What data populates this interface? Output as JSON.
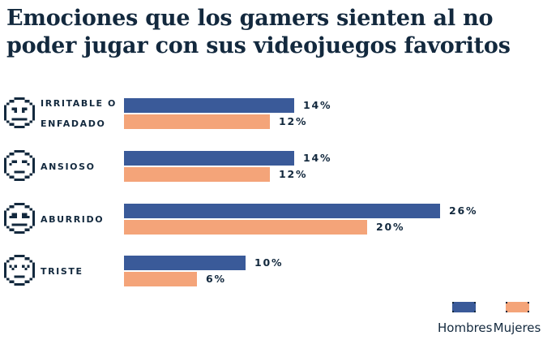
{
  "title": "Emociones que los gamers sienten al no poder jugar con sus videojuegos favoritos",
  "colors": {
    "text": "#13293E",
    "hombres": "#3A5A99",
    "mujeres": "#F4A479",
    "background": "#FFFFFF"
  },
  "chart_data": {
    "type": "bar",
    "orientation": "horizontal",
    "title": "Emociones que los gamers sienten al no poder jugar con sus videojuegos favoritos",
    "categories": [
      "Irritable o enfadado",
      "Ansioso",
      "Aburrido",
      "Triste"
    ],
    "category_display": [
      [
        "IRRITABLE O",
        "ENFADADO"
      ],
      [
        "ANSIOSO"
      ],
      [
        "ABURRIDO"
      ],
      [
        "TRISTE"
      ]
    ],
    "category_icons": [
      "angry-face-icon",
      "anxious-face-icon",
      "bored-face-icon",
      "sad-face-icon"
    ],
    "series": [
      {
        "name": "Hombres",
        "color": "#3A5A99",
        "values": [
          14,
          14,
          26,
          10
        ]
      },
      {
        "name": "Mujeres",
        "color": "#F4A479",
        "values": [
          12,
          12,
          20,
          6
        ]
      }
    ],
    "value_suffix": "%",
    "value_labels": [
      [
        "14%",
        "14%",
        "26%",
        "10%"
      ],
      [
        "12%",
        "12%",
        "20%",
        "6%"
      ]
    ],
    "xlim": [
      0,
      30
    ],
    "grid": false,
    "legend_position": "bottom-right"
  },
  "legend": {
    "items": [
      {
        "label": "Hombres",
        "color": "#3A5A99"
      },
      {
        "label": "Mujeres",
        "color": "#F4A479"
      }
    ]
  }
}
